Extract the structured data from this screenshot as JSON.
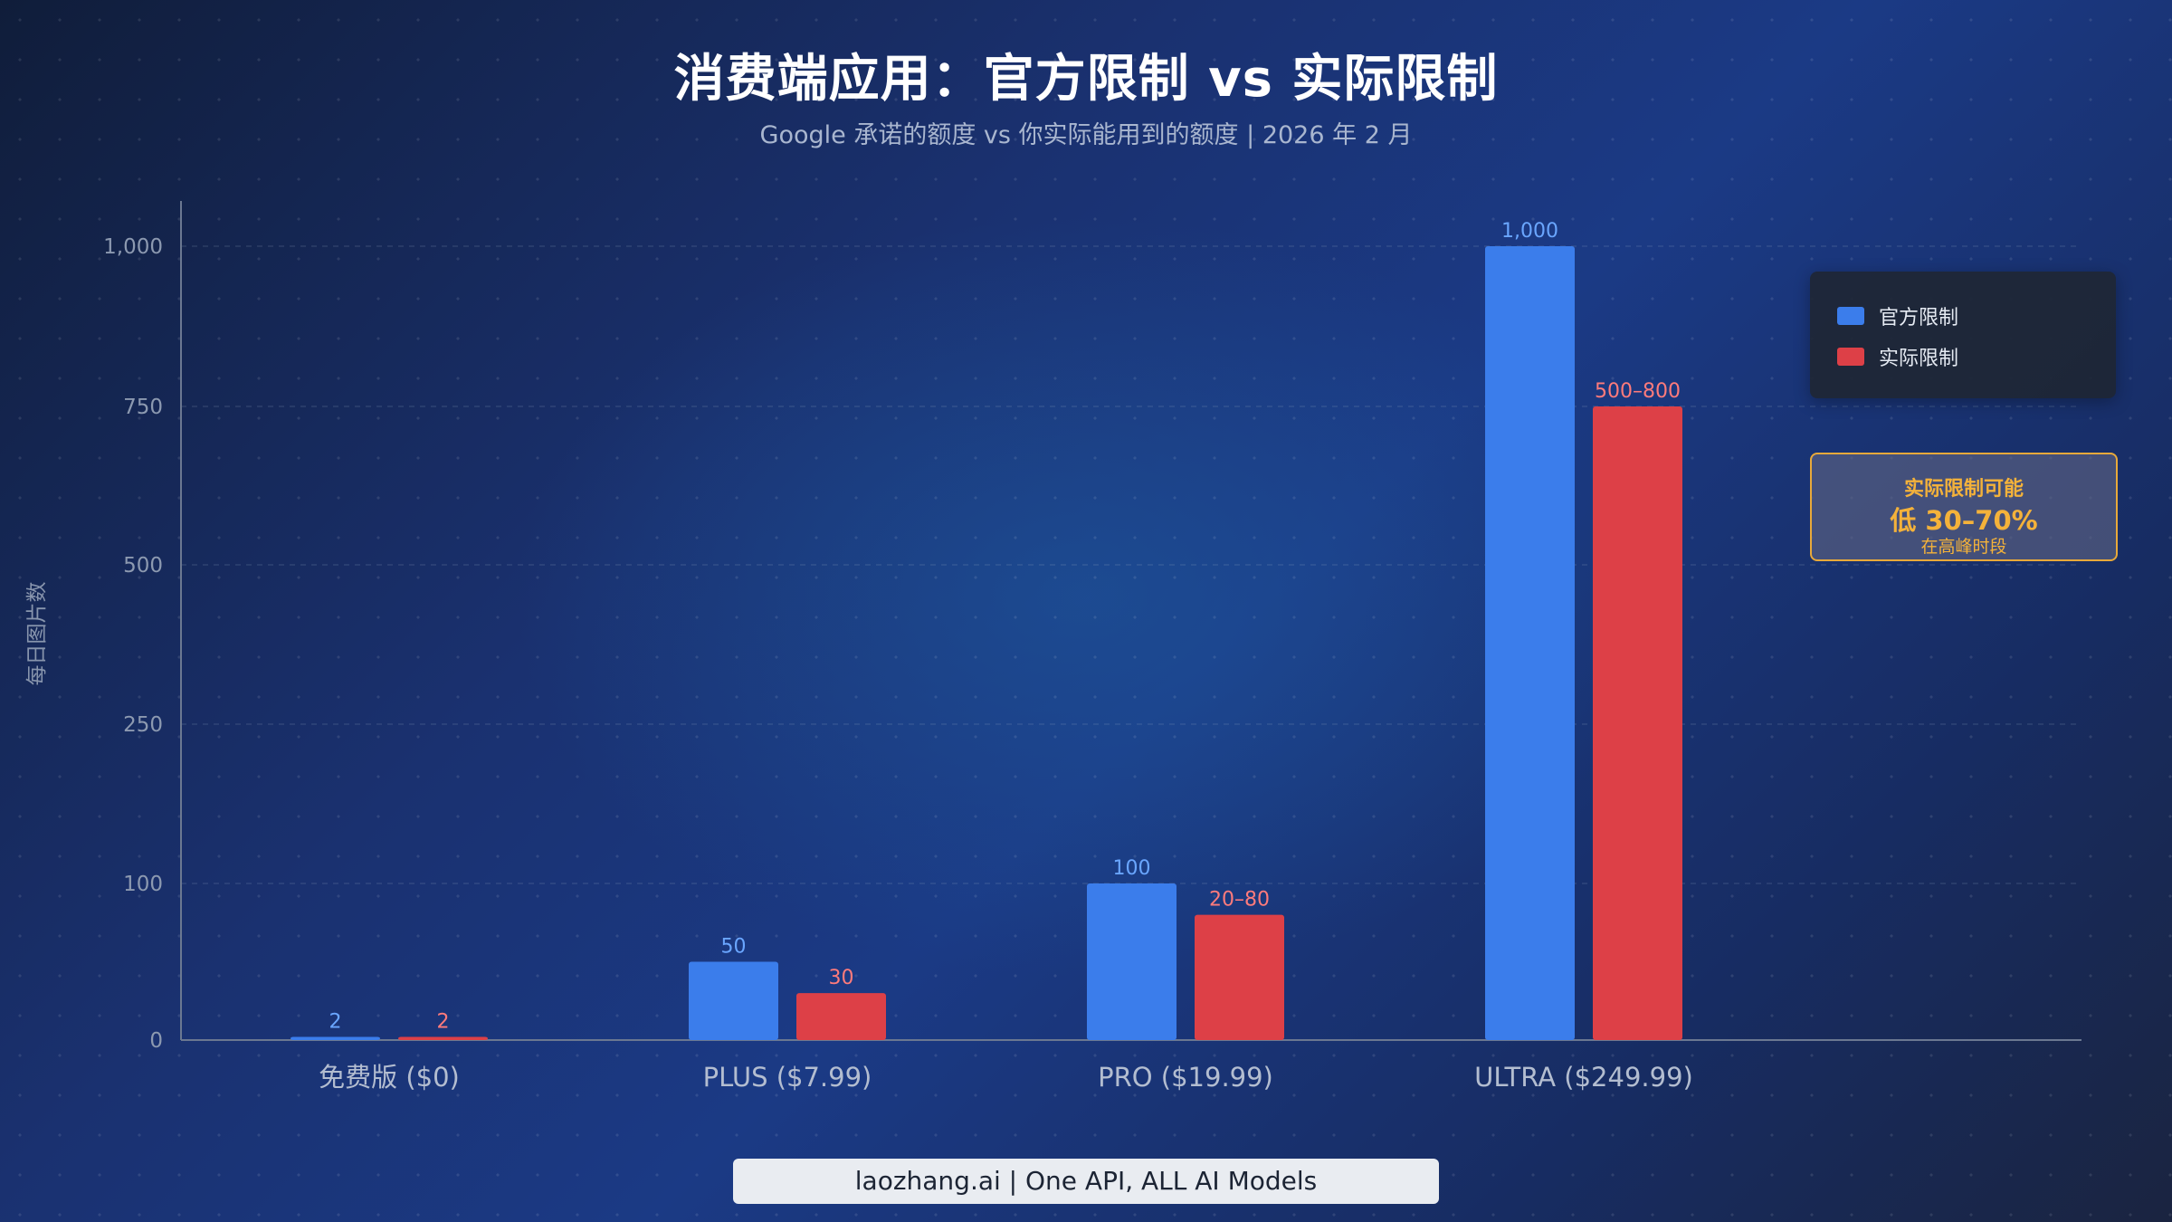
{
  "title": "消费端应用：官方限制 vs 实际限制",
  "subtitle": "Google 承诺的额度 vs 你实际能用到的额度 | 2026 年 2 月",
  "footer": "laozhang.ai | One API, ALL AI Models",
  "note": {
    "line1": "实际限制可能",
    "line2": "低 30–70%",
    "line3": "在高峰时段"
  },
  "colors": {
    "official": "#3b7deb",
    "actual": "#dd4047",
    "official_label": "#6aa6ff",
    "actual_label": "#ff7b7b",
    "note": "#f4b23a"
  },
  "chart_data": {
    "type": "bar",
    "ylabel": "每日图片数",
    "xlabel": "",
    "yticks": [
      0,
      100,
      250,
      500,
      750,
      1000
    ],
    "ytick_labels": [
      "0",
      "100",
      "250",
      "500",
      "750",
      "1,000"
    ],
    "categories": [
      "免费版 ($0)",
      "PLUS ($7.99)",
      "PRO ($19.99)",
      "ULTRA ($249.99)"
    ],
    "legend_position": "top-right",
    "grid": true,
    "series": [
      {
        "name": "官方限制",
        "values": [
          2,
          50,
          100,
          1000
        ],
        "labels": [
          "2",
          "50",
          "100",
          "1,000"
        ]
      },
      {
        "name": "实际限制",
        "values": [
          2,
          30,
          80,
          750
        ],
        "labels": [
          "2",
          "30",
          "20–80",
          "500–800"
        ]
      }
    ]
  }
}
